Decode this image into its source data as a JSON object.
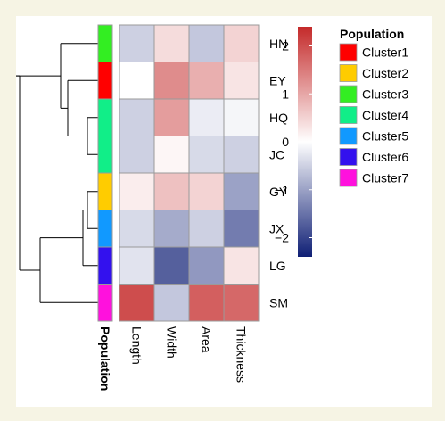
{
  "chart_data": {
    "type": "heatmap",
    "rows": [
      "HN",
      "EY",
      "HQ",
      "JC",
      "GY",
      "JX",
      "LG",
      "SM"
    ],
    "columns": [
      "Length",
      "Width",
      "Area",
      "Thickness"
    ],
    "values": [
      [
        -0.5,
        0.4,
        -0.6,
        0.5
      ],
      [
        0.0,
        1.3,
        0.9,
        0.3
      ],
      [
        -0.5,
        1.1,
        -0.2,
        -0.1
      ],
      [
        -0.5,
        0.1,
        -0.4,
        -0.5
      ],
      [
        0.2,
        0.7,
        0.5,
        -1.0
      ],
      [
        -0.4,
        -0.9,
        -0.5,
        -1.4
      ],
      [
        -0.3,
        -1.7,
        -1.1,
        0.3
      ],
      [
        2.0,
        -0.6,
        1.8,
        1.7
      ]
    ],
    "row_population": [
      "Cluster3",
      "Cluster1",
      "Cluster4",
      "Cluster4",
      "Cluster2",
      "Cluster5",
      "Cluster6",
      "Cluster7"
    ],
    "annotation_label": "Population",
    "colorbar": {
      "min": -2.4,
      "max": 2.4,
      "ticks": [
        2,
        1,
        0,
        -1,
        -2
      ],
      "tick_labels": [
        "2",
        "1",
        "0",
        "−1",
        "−2"
      ],
      "colors": [
        "#0f1f75",
        "#ffffff",
        "#c42a2a"
      ]
    },
    "legend": {
      "title": "Population",
      "position": "right",
      "entries": [
        {
          "label": "Cluster1",
          "color": "#ff0000"
        },
        {
          "label": "Cluster2",
          "color": "#ffcc00"
        },
        {
          "label": "Cluster3",
          "color": "#33ee22"
        },
        {
          "label": "Cluster4",
          "color": "#11ee88"
        },
        {
          "label": "Cluster5",
          "color": "#1199ff"
        },
        {
          "label": "Cluster6",
          "color": "#3311ee"
        },
        {
          "label": "Cluster7",
          "color": "#ff11dd"
        }
      ]
    }
  }
}
